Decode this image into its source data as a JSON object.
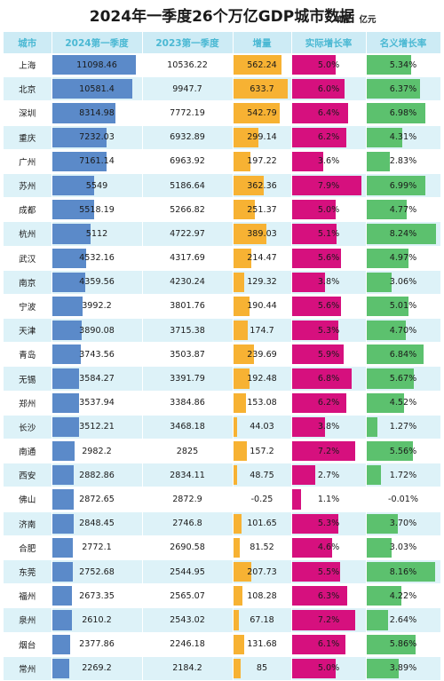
{
  "title": "2024年一季度26个万亿GDP城市数据",
  "unit": "单位：亿元",
  "colors": {
    "header_bg": "#cdebf5",
    "header_text": "#4ab8d3",
    "row_alt": "#ddf2f8",
    "gdp_bar": "#5b8ac9",
    "increase_bar": "#f7b233",
    "real_growth_bar": "#d6107e",
    "nominal_growth_bar": "#5cc16e"
  },
  "headers": [
    "城市",
    "2024第一季度",
    "2023第一季度",
    "增量",
    "实际增长率",
    "名义增长率"
  ],
  "chart_data": {
    "type": "table",
    "title": "2024年一季度26个万亿GDP城市数据",
    "columns": [
      "城市",
      "2024第一季度",
      "2023第一季度",
      "增量",
      "实际增长率",
      "名义增长率"
    ],
    "rows": [
      {
        "city": "上海",
        "gdp2024": "11098.46",
        "gdp2023": "10536.22",
        "increase": "562.24",
        "real": "5.0%",
        "nominal": "5.34%"
      },
      {
        "city": "北京",
        "gdp2024": "10581.4",
        "gdp2023": "9947.7",
        "increase": "633.7",
        "real": "6.0%",
        "nominal": "6.37%"
      },
      {
        "city": "深圳",
        "gdp2024": "8314.98",
        "gdp2023": "7772.19",
        "increase": "542.79",
        "real": "6.4%",
        "nominal": "6.98%"
      },
      {
        "city": "重庆",
        "gdp2024": "7232.03",
        "gdp2023": "6932.89",
        "increase": "299.14",
        "real": "6.2%",
        "nominal": "4.31%"
      },
      {
        "city": "广州",
        "gdp2024": "7161.14",
        "gdp2023": "6963.92",
        "increase": "197.22",
        "real": "3.6%",
        "nominal": "2.83%"
      },
      {
        "city": "苏州",
        "gdp2024": "5549",
        "gdp2023": "5186.64",
        "increase": "362.36",
        "real": "7.9%",
        "nominal": "6.99%"
      },
      {
        "city": "成都",
        "gdp2024": "5518.19",
        "gdp2023": "5266.82",
        "increase": "251.37",
        "real": "5.0%",
        "nominal": "4.77%"
      },
      {
        "city": "杭州",
        "gdp2024": "5112",
        "gdp2023": "4722.97",
        "increase": "389.03",
        "real": "5.1%",
        "nominal": "8.24%"
      },
      {
        "city": "武汉",
        "gdp2024": "4532.16",
        "gdp2023": "4317.69",
        "increase": "214.47",
        "real": "5.6%",
        "nominal": "4.97%"
      },
      {
        "city": "南京",
        "gdp2024": "4359.56",
        "gdp2023": "4230.24",
        "increase": "129.32",
        "real": "3.8%",
        "nominal": "3.06%"
      },
      {
        "city": "宁波",
        "gdp2024": "3992.2",
        "gdp2023": "3801.76",
        "increase": "190.44",
        "real": "5.6%",
        "nominal": "5.01%"
      },
      {
        "city": "天津",
        "gdp2024": "3890.08",
        "gdp2023": "3715.38",
        "increase": "174.7",
        "real": "5.3%",
        "nominal": "4.70%"
      },
      {
        "city": "青岛",
        "gdp2024": "3743.56",
        "gdp2023": "3503.87",
        "increase": "239.69",
        "real": "5.9%",
        "nominal": "6.84%"
      },
      {
        "city": "无锡",
        "gdp2024": "3584.27",
        "gdp2023": "3391.79",
        "increase": "192.48",
        "real": "6.8%",
        "nominal": "5.67%"
      },
      {
        "city": "郑州",
        "gdp2024": "3537.94",
        "gdp2023": "3384.86",
        "increase": "153.08",
        "real": "6.2%",
        "nominal": "4.52%"
      },
      {
        "city": "长沙",
        "gdp2024": "3512.21",
        "gdp2023": "3468.18",
        "increase": "44.03",
        "real": "3.8%",
        "nominal": "1.27%"
      },
      {
        "city": "南通",
        "gdp2024": "2982.2",
        "gdp2023": "2825",
        "increase": "157.2",
        "real": "7.2%",
        "nominal": "5.56%"
      },
      {
        "city": "西安",
        "gdp2024": "2882.86",
        "gdp2023": "2834.11",
        "increase": "48.75",
        "real": "2.7%",
        "nominal": "1.72%"
      },
      {
        "city": "佛山",
        "gdp2024": "2872.65",
        "gdp2023": "2872.9",
        "increase": "-0.25",
        "real": "1.1%",
        "nominal": "-0.01%"
      },
      {
        "city": "济南",
        "gdp2024": "2848.45",
        "gdp2023": "2746.8",
        "increase": "101.65",
        "real": "5.3%",
        "nominal": "3.70%"
      },
      {
        "city": "合肥",
        "gdp2024": "2772.1",
        "gdp2023": "2690.58",
        "increase": "81.52",
        "real": "4.6%",
        "nominal": "3.03%"
      },
      {
        "city": "东莞",
        "gdp2024": "2752.68",
        "gdp2023": "2544.95",
        "increase": "207.73",
        "real": "5.5%",
        "nominal": "8.16%"
      },
      {
        "city": "福州",
        "gdp2024": "2673.35",
        "gdp2023": "2565.07",
        "increase": "108.28",
        "real": "6.3%",
        "nominal": "4.22%"
      },
      {
        "city": "泉州",
        "gdp2024": "2610.2",
        "gdp2023": "2543.02",
        "increase": "67.18",
        "real": "7.2%",
        "nominal": "2.64%"
      },
      {
        "city": "烟台",
        "gdp2024": "2377.86",
        "gdp2023": "2246.18",
        "increase": "131.68",
        "real": "6.1%",
        "nominal": "5.86%"
      },
      {
        "city": "常州",
        "gdp2024": "2269.2",
        "gdp2023": "2184.2",
        "increase": "85",
        "real": "5.0%",
        "nominal": "3.89%"
      }
    ]
  }
}
